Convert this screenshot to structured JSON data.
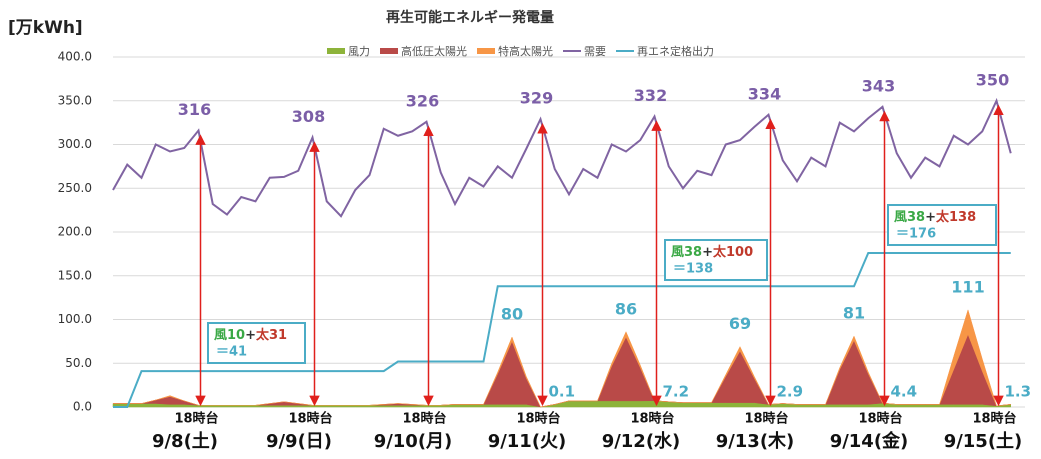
{
  "chart_data": {
    "type": "line",
    "title": "再生可能エネルギー発電量",
    "y_unit_label": "[万kWh]",
    "ylim": [
      0,
      400
    ],
    "yticks": [
      {
        "value": 0,
        "label": "0.0"
      },
      {
        "value": 50,
        "label": "50.0"
      },
      {
        "value": 100,
        "label": "100.0"
      },
      {
        "value": 150,
        "label": "150.0"
      },
      {
        "value": 200,
        "label": "200.0"
      },
      {
        "value": 250,
        "label": "250.0"
      },
      {
        "value": 300,
        "label": "300.0"
      },
      {
        "value": 350,
        "label": "350.0"
      },
      {
        "value": 400,
        "label": "400.0"
      }
    ],
    "grid": true,
    "categories": [
      null,
      null,
      null,
      null,
      null,
      null,
      "18時台",
      null,
      null,
      null,
      null,
      null,
      null,
      null,
      "18時台",
      null,
      null,
      null,
      null,
      null,
      null,
      null,
      "18時台",
      null,
      null,
      null,
      null,
      null,
      null,
      null,
      "18時台",
      null,
      null,
      null,
      null,
      null,
      null,
      null,
      "18時台",
      null,
      null,
      null,
      null,
      null,
      null,
      null,
      "18時台",
      null,
      null,
      null,
      null,
      null,
      null,
      null,
      "18時台",
      null,
      null,
      null,
      null,
      null,
      null,
      null,
      "18時台",
      null
    ],
    "day_labels": [
      "9/8(土)",
      "9/9(日)",
      "9/10(月)",
      "9/11(火)",
      "9/12(水)",
      "9/13(木)",
      "9/14(金)",
      "9/15(土)"
    ],
    "series": [
      {
        "name": "風力",
        "color": "#8db33a",
        "stack": true,
        "values": [
          4,
          4,
          4,
          4,
          3,
          3,
          2,
          2,
          2,
          2,
          2,
          2,
          2,
          2,
          2,
          2,
          2,
          2,
          2,
          2,
          2,
          2,
          2,
          2,
          3,
          3,
          3,
          3,
          3,
          3,
          0.1,
          3,
          7,
          7,
          7,
          7,
          7,
          7,
          7.2,
          6,
          5,
          5,
          5,
          5,
          5,
          5,
          2.9,
          4,
          3,
          3,
          3,
          3,
          3,
          3,
          4.4,
          3,
          3,
          3,
          3,
          3,
          3,
          3,
          1.3,
          3
        ]
      },
      {
        "name": "高低圧太陽光",
        "color": "#b94a48",
        "stack": true,
        "values": [
          0,
          0,
          0,
          4,
          9,
          4,
          0,
          0,
          0,
          0,
          0,
          2,
          4,
          2,
          0,
          0,
          0,
          0,
          0,
          1,
          2,
          1,
          0,
          0,
          0,
          0,
          0,
          35,
          72,
          30,
          0,
          0,
          0,
          0,
          0,
          40,
          73,
          38,
          0,
          0,
          0,
          0,
          0,
          30,
          59,
          28,
          0,
          0,
          0,
          0,
          0,
          40,
          73,
          35,
          0,
          0,
          0,
          0,
          0,
          40,
          80,
          38,
          0,
          0
        ]
      },
      {
        "name": "特高太陽光",
        "color": "#f79646",
        "stack": true,
        "values": [
          0,
          0,
          0,
          0,
          1,
          0,
          0,
          0,
          0,
          0,
          0,
          0,
          0,
          0,
          0,
          0,
          0,
          0,
          0,
          0,
          0,
          0,
          0,
          0,
          0,
          0,
          0,
          2,
          5,
          2,
          0,
          0,
          0,
          0,
          0,
          3,
          6,
          3,
          0,
          0,
          0,
          0,
          0,
          2,
          5,
          2,
          0,
          0,
          0,
          0,
          0,
          2,
          5,
          2,
          0,
          0,
          0,
          0,
          0,
          15,
          28,
          14,
          0,
          0
        ]
      },
      {
        "name": "需要",
        "color": "#8064a2",
        "values": [
          248,
          277,
          262,
          300,
          292,
          296,
          316,
          232,
          220,
          240,
          235,
          262,
          263,
          270,
          308,
          235,
          218,
          248,
          265,
          318,
          310,
          315,
          326,
          268,
          232,
          262,
          252,
          275,
          262,
          295,
          329,
          272,
          243,
          272,
          262,
          300,
          292,
          305,
          332,
          275,
          250,
          270,
          265,
          300,
          305,
          320,
          334,
          282,
          258,
          285,
          275,
          325,
          315,
          330,
          343,
          290,
          262,
          285,
          275,
          310,
          300,
          315,
          350,
          290
        ]
      },
      {
        "name": "再エネ定格出力",
        "color": "#4bacc6",
        "values": [
          0,
          0,
          41,
          41,
          41,
          41,
          41,
          41,
          41,
          41,
          41,
          41,
          41,
          41,
          41,
          41,
          41,
          41,
          41,
          41,
          52,
          52,
          52,
          52,
          52,
          52,
          52,
          138,
          138,
          138,
          138,
          138,
          138,
          138,
          138,
          138,
          138,
          138,
          138,
          138,
          138,
          138,
          138,
          138,
          138,
          138,
          138,
          138,
          138,
          138,
          138,
          138,
          138,
          176,
          176,
          176,
          176,
          176,
          176,
          176,
          176,
          176,
          176,
          176
        ]
      }
    ],
    "peak_labels": [
      316,
      308,
      326,
      329,
      332,
      334,
      343,
      350
    ],
    "solar_peak_labels": [
      null,
      null,
      null,
      80,
      86,
      69,
      81,
      111
    ],
    "evening_labels": [
      null,
      null,
      null,
      0.1,
      7.2,
      2.9,
      4.4,
      1.3
    ],
    "boxes": [
      {
        "wind": "風10",
        "plus": "+",
        "solar": "太31",
        "total": "＝41"
      },
      {
        "wind": "風38",
        "plus": "+",
        "solar": "太100",
        "total": "＝138"
      },
      {
        "wind": "風38",
        "plus": "+",
        "solar": "太138",
        "total": "＝176"
      }
    ]
  }
}
